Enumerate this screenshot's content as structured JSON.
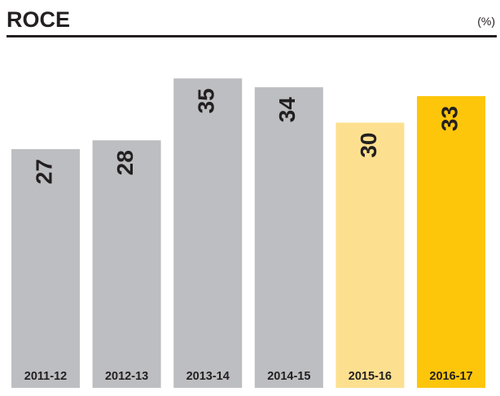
{
  "chart_data": {
    "type": "bar",
    "title": "ROCE",
    "unit_label": "(%)",
    "categories": [
      "2011-12",
      "2012-13",
      "2013-14",
      "2014-15",
      "2015-16",
      "2016-17"
    ],
    "values": [
      27,
      28,
      35,
      34,
      30,
      33
    ],
    "colors": [
      "#bdbec1",
      "#bdbec1",
      "#bdbec1",
      "#bdbec1",
      "#fde08f",
      "#fdc60b"
    ]
  }
}
